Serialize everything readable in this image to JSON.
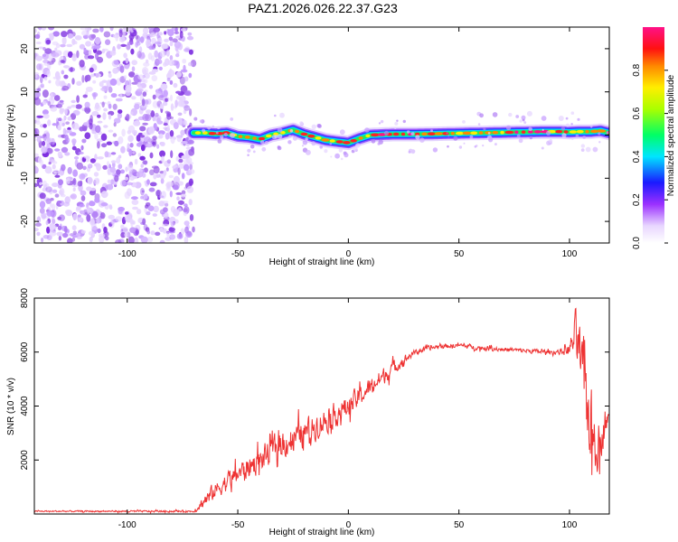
{
  "title": "PAZ1.2026.026.22.37.G23",
  "chart_data": [
    {
      "type": "heatmap",
      "name": "spectrogram",
      "xlabel": "Height of straight line (km)",
      "ylabel": "Frequency (Hz)",
      "xlim": [
        -142,
        118
      ],
      "ylim": [
        -25,
        25
      ],
      "xticks": [
        -100,
        -50,
        0,
        50,
        100
      ],
      "yticks": [
        -20,
        -10,
        0,
        10,
        20
      ],
      "noise_region_x": [
        -142,
        -70
      ],
      "ridge": {
        "x": [
          -70,
          -65,
          -60,
          -55,
          -50,
          -45,
          -40,
          -35,
          -30,
          -25,
          -20,
          -15,
          -10,
          -5,
          0,
          5,
          10,
          20,
          30,
          40,
          50,
          60,
          70,
          80,
          90,
          95,
          100,
          105,
          110,
          114,
          118
        ],
        "freq": [
          0.5,
          0.5,
          0.3,
          0.5,
          -0.3,
          -0.5,
          -1.0,
          0.0,
          0.5,
          1.2,
          0.2,
          -0.5,
          -1.2,
          -1.5,
          -1.8,
          -0.8,
          0.0,
          0.2,
          0.2,
          0.3,
          0.4,
          0.5,
          0.6,
          0.7,
          0.8,
          0.8,
          0.7,
          0.8,
          0.8,
          1.0,
          0.5
        ]
      },
      "colorbar": {
        "label": "Normalized spectral amplitude",
        "ticks": [
          "0.0",
          "0.2",
          "0.4",
          "0.6",
          "0.8"
        ],
        "range": [
          0,
          1
        ]
      }
    },
    {
      "type": "line",
      "name": "snr",
      "xlabel": "Height of straight line (km)",
      "ylabel": "SNR (10 * v/v)",
      "xlim": [
        -142,
        118
      ],
      "ylim": [
        0,
        8000
      ],
      "xticks": [
        -100,
        -50,
        0,
        50,
        100
      ],
      "yticks": [
        2000,
        4000,
        6000,
        8000
      ],
      "series_color": "#ee3333",
      "envelope": {
        "x": [
          -142,
          -70,
          -65,
          -60,
          -50,
          -40,
          -30,
          -20,
          -10,
          0,
          10,
          20,
          30,
          40,
          50,
          60,
          70,
          80,
          90,
          95,
          100,
          103,
          106,
          110,
          113,
          116,
          118
        ],
        "y": [
          100,
          100,
          500,
          900,
          1500,
          2000,
          2600,
          3000,
          3500,
          4000,
          4700,
          5400,
          6000,
          6200,
          6250,
          6150,
          6100,
          6050,
          6000,
          6000,
          6100,
          6800,
          5000,
          3000,
          2500,
          3300,
          3600
        ]
      },
      "amplitude": {
        "x": [
          -142,
          -70,
          -65,
          -30,
          0,
          20,
          30,
          95,
          100,
          103,
          106,
          110,
          113,
          118
        ],
        "y": [
          40,
          60,
          450,
          900,
          700,
          450,
          150,
          140,
          400,
          1500,
          2000,
          2500,
          1500,
          300
        ]
      }
    }
  ],
  "colors": {
    "axis": "#000000",
    "line": "#ee3333",
    "noise": "#9b5fe8",
    "background": "#ffffff"
  }
}
